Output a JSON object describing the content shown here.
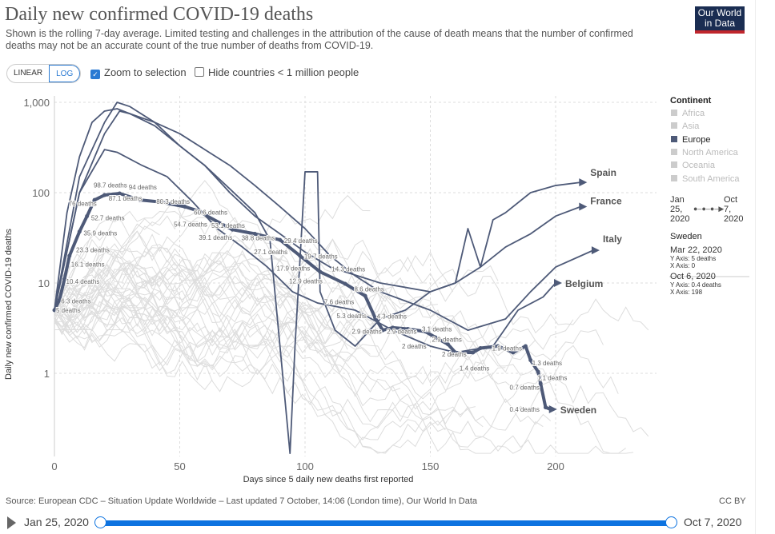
{
  "header": {
    "title": "Daily new confirmed COVID-19 deaths",
    "subtitle": "Shown is the rolling 7-day average. Limited testing and challenges in the attribution of the cause of death means that the number of confirmed deaths may not be an accurate count of the true number of deaths from COVID-19.",
    "logo": "Our World in Data"
  },
  "controls": {
    "linear": "LINEAR",
    "log": "LOG",
    "zoom_label": "Zoom to selection",
    "zoom_checked": true,
    "hide_label": "Hide countries < 1 million people",
    "hide_checked": false
  },
  "legend": {
    "title": "Continent",
    "items": [
      {
        "label": "Africa",
        "active": false
      },
      {
        "label": "Asia",
        "active": false
      },
      {
        "label": "Europe",
        "active": true
      },
      {
        "label": "North America",
        "active": false
      },
      {
        "label": "Oceania",
        "active": false
      },
      {
        "label": "South America",
        "active": false
      }
    ]
  },
  "comparison": {
    "start": "Jan 25, 2020",
    "end": "Oct 7, 2020",
    "start_l": [
      "Jan",
      "25,",
      "2020"
    ],
    "end_l": [
      "Oct",
      "7,",
      "2020"
    ],
    "country": "Sweden",
    "p1_date": "Mar 22, 2020",
    "p1_y": "Y Axis: 5 deaths",
    "p1_x": "X Axis: 0",
    "p2_date": "Oct 6, 2020",
    "p2_y": "Y Axis: 0.4 deaths",
    "p2_x": "X Axis: 198"
  },
  "footer": {
    "source": "Source: European CDC – Situation Update Worldwide – Last updated 7 October, 14:06 (London time), Our World In Data",
    "license": "CC BY"
  },
  "timeline": {
    "start": "Jan 25, 2020",
    "end": "Oct 7, 2020",
    "start_frac": 0,
    "end_frac": 1
  },
  "chart_data": {
    "type": "line",
    "xlabel": "Days since 5 daily new deaths first reported",
    "ylabel": "Daily new confirmed COVID-19 deaths",
    "yscale": "log",
    "ylim": [
      0.12,
      1300
    ],
    "xlim": [
      0,
      240
    ],
    "xticks": [
      0,
      50,
      100,
      150,
      200
    ],
    "yticks": [
      {
        "v": 1,
        "label": "1"
      },
      {
        "v": 10,
        "label": "10"
      },
      {
        "v": 100,
        "label": "100"
      },
      {
        "v": 1000,
        "label": "1,000"
      }
    ],
    "grid": true,
    "colors": {
      "highlight": "#4e5a78",
      "background": "#dddddd"
    },
    "series": [
      {
        "name": "Spain",
        "points": [
          [
            0,
            5
          ],
          [
            5,
            60
          ],
          [
            10,
            250
          ],
          [
            15,
            600
          ],
          [
            20,
            800
          ],
          [
            25,
            850
          ],
          [
            30,
            750
          ],
          [
            40,
            550
          ],
          [
            50,
            330
          ],
          [
            60,
            200
          ],
          [
            70,
            110
          ],
          [
            80,
            60
          ],
          [
            86,
            30
          ],
          [
            90,
            2
          ],
          [
            94,
            0.13
          ],
          [
            96,
            2
          ],
          [
            100,
            170
          ],
          [
            105,
            170
          ],
          [
            106,
            8
          ],
          [
            112,
            3
          ],
          [
            120,
            2
          ],
          [
            130,
            4
          ],
          [
            140,
            5
          ],
          [
            150,
            8
          ],
          [
            160,
            10
          ],
          [
            165,
            40
          ],
          [
            170,
            15
          ],
          [
            175,
            50
          ],
          [
            180,
            60
          ],
          [
            190,
            100
          ],
          [
            200,
            120
          ],
          [
            210,
            130
          ]
        ]
      },
      {
        "name": "France",
        "points": [
          [
            0,
            5
          ],
          [
            10,
            150
          ],
          [
            20,
            600
          ],
          [
            25,
            1000
          ],
          [
            30,
            900
          ],
          [
            40,
            600
          ],
          [
            50,
            330
          ],
          [
            60,
            200
          ],
          [
            70,
            100
          ],
          [
            80,
            55
          ],
          [
            90,
            35
          ],
          [
            100,
            22
          ],
          [
            110,
            15
          ],
          [
            130,
            10
          ],
          [
            150,
            8
          ],
          [
            160,
            10
          ],
          [
            170,
            15
          ],
          [
            180,
            25
          ],
          [
            190,
            35
          ],
          [
            200,
            55
          ],
          [
            210,
            70
          ]
        ]
      },
      {
        "name": "Italy",
        "points": [
          [
            0,
            5
          ],
          [
            10,
            100
          ],
          [
            20,
            450
          ],
          [
            26,
            800
          ],
          [
            30,
            750
          ],
          [
            40,
            600
          ],
          [
            50,
            450
          ],
          [
            60,
            300
          ],
          [
            70,
            200
          ],
          [
            80,
            120
          ],
          [
            90,
            70
          ],
          [
            100,
            40
          ],
          [
            110,
            20
          ],
          [
            120,
            12
          ],
          [
            130,
            8
          ],
          [
            150,
            5
          ],
          [
            165,
            3
          ],
          [
            180,
            4
          ],
          [
            190,
            8
          ],
          [
            200,
            15
          ],
          [
            215,
            23
          ]
        ]
      },
      {
        "name": "Belgium",
        "points": [
          [
            0,
            5
          ],
          [
            10,
            100
          ],
          [
            20,
            300
          ],
          [
            25,
            280
          ],
          [
            35,
            200
          ],
          [
            45,
            150
          ],
          [
            55,
            80
          ],
          [
            65,
            40
          ],
          [
            75,
            25
          ],
          [
            85,
            15
          ],
          [
            95,
            8
          ],
          [
            105,
            6
          ],
          [
            120,
            5
          ],
          [
            135,
            3
          ],
          [
            150,
            2
          ],
          [
            160,
            1.7
          ],
          [
            175,
            2
          ],
          [
            185,
            5
          ],
          [
            195,
            7
          ],
          [
            200,
            10
          ]
        ]
      },
      {
        "name": "Sweden",
        "points": [
          [
            0,
            5
          ],
          [
            2,
            6.5
          ],
          [
            4,
            11
          ],
          [
            6,
            20
          ],
          [
            10,
            37
          ],
          [
            13,
            55
          ],
          [
            16,
            83
          ],
          [
            20,
            94
          ],
          [
            26,
            98
          ],
          [
            34,
            83
          ],
          [
            42,
            79
          ],
          [
            52,
            70
          ],
          [
            58,
            62
          ],
          [
            61,
            55
          ],
          [
            71,
            39
          ],
          [
            80,
            35
          ],
          [
            90,
            30
          ],
          [
            98,
            20
          ],
          [
            106,
            13.3
          ],
          [
            116,
            9.8
          ],
          [
            124,
            7.2
          ],
          [
            128,
            4.1
          ],
          [
            131,
            3
          ],
          [
            135,
            3.2
          ],
          [
            141,
            3.1
          ],
          [
            148,
            2.9
          ],
          [
            152,
            2.5
          ],
          [
            157,
            2.1
          ],
          [
            160,
            1.7
          ],
          [
            167,
            1.7
          ],
          [
            170,
            1.9
          ],
          [
            177,
            2
          ],
          [
            183,
            1.7
          ],
          [
            188,
            2
          ],
          [
            190,
            1.4
          ],
          [
            193,
            1.04
          ],
          [
            194,
            0.77
          ],
          [
            196,
            0.42
          ],
          [
            198,
            0.4
          ]
        ]
      }
    ],
    "annotations": [
      [
        0,
        5,
        "5 deaths"
      ],
      [
        2,
        6.3,
        "6.3 deaths"
      ],
      [
        4,
        10.4,
        "10.4 deaths"
      ],
      [
        6,
        16.1,
        "16.1 deaths"
      ],
      [
        8,
        23.3,
        "23.3 deaths"
      ],
      [
        11,
        35.9,
        "35.9 deaths"
      ],
      [
        14,
        52.7,
        "52.7 deaths"
      ],
      [
        5,
        76,
        "76 deaths"
      ],
      [
        21,
        87.1,
        "87.1 deaths"
      ],
      [
        15,
        98.7,
        "98.7 deaths"
      ],
      [
        29,
        94,
        "94 deaths"
      ],
      [
        40,
        80.3,
        "80.3 deaths"
      ],
      [
        55,
        60.6,
        "60.6 deaths"
      ],
      [
        47,
        54.7,
        "54.7 deaths"
      ],
      [
        62,
        53.1,
        "53.1 deaths"
      ],
      [
        57,
        39.1,
        "39.1 deaths"
      ],
      [
        74,
        38.8,
        "38.8 deaths"
      ],
      [
        91,
        29.4,
        "29.4 deaths"
      ],
      [
        79,
        27.1,
        "27.1 deaths"
      ],
      [
        99,
        19.7,
        "19.7 deaths"
      ],
      [
        88,
        17.9,
        "17.9 deaths"
      ],
      [
        110,
        14.3,
        "14.3 deaths"
      ],
      [
        93,
        12.9,
        "12.9 deaths"
      ],
      [
        119,
        8.6,
        "8.6 deaths"
      ],
      [
        107,
        7.6,
        "7.6 deaths"
      ],
      [
        112,
        5.3,
        "5.3 deaths"
      ],
      [
        128,
        4.3,
        "4.3 deaths"
      ],
      [
        118,
        2.9,
        "2.9 deaths"
      ],
      [
        132,
        2.9,
        "2.9 deaths"
      ],
      [
        146,
        3.1,
        "3.1 deaths"
      ],
      [
        138,
        2,
        "2 deaths"
      ],
      [
        150,
        2.9,
        "2.9 deaths"
      ],
      [
        154,
        2,
        "2 deaths"
      ],
      [
        161,
        1.4,
        "1.4 deaths"
      ],
      [
        174,
        1.9,
        "1.9 deaths"
      ],
      [
        190,
        1.3,
        "1.3 deaths"
      ],
      [
        192,
        1.1,
        "1.1 deaths"
      ],
      [
        181,
        0.7,
        "0.7 deaths"
      ],
      [
        181,
        0.4,
        "0.4 deaths"
      ]
    ]
  }
}
